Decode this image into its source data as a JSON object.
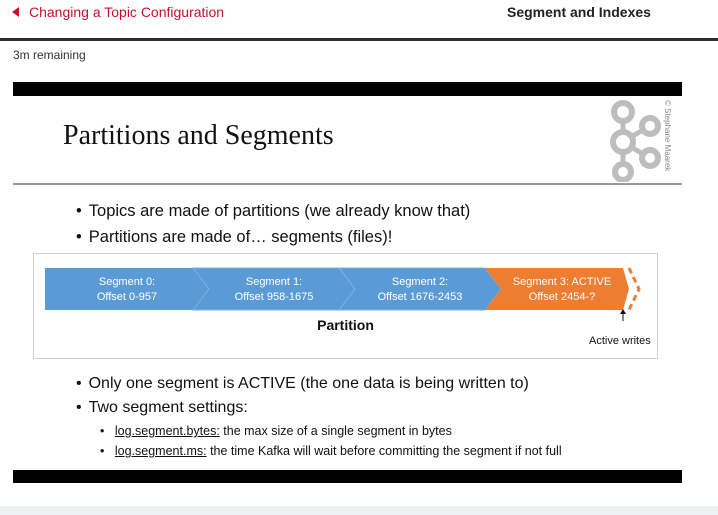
{
  "nav": {
    "prev_label": "Changing a Topic Configuration",
    "next_label": "Segment and Indexes",
    "time_remaining": "3m remaining"
  },
  "slide": {
    "title": "Partitions and Segments",
    "copyright": "© Stephane Maarek",
    "bullets_top": [
      "Topics are made of partitions (we already know that)",
      "Partitions are made of… segments (files)!"
    ],
    "diagram": {
      "segments": [
        {
          "name": "Segment 0:",
          "offset": "Offset 0-957",
          "color": "#5b9bd5"
        },
        {
          "name": "Segment 1:",
          "offset": "Offset 958-1675",
          "color": "#5b9bd5"
        },
        {
          "name": "Segment 2:",
          "offset": "Offset 1676-2453",
          "color": "#5b9bd5"
        },
        {
          "name": "Segment 3: ACTIVE",
          "offset": "Offset 2454-?",
          "color": "#ed7d31"
        }
      ],
      "partition_label": "Partition",
      "active_writes_label": "Active writes"
    },
    "bullets_bottom": [
      "Only one segment is ACTIVE (the one data is being written to)",
      "Two segment settings:"
    ],
    "subbullets": [
      {
        "key": "log.segment.bytes:",
        "text": " the max size of a single segment in bytes"
      },
      {
        "key": "log.segment.ms:",
        "text": " the time Kafka will wait before committing the segment if not full"
      }
    ]
  }
}
